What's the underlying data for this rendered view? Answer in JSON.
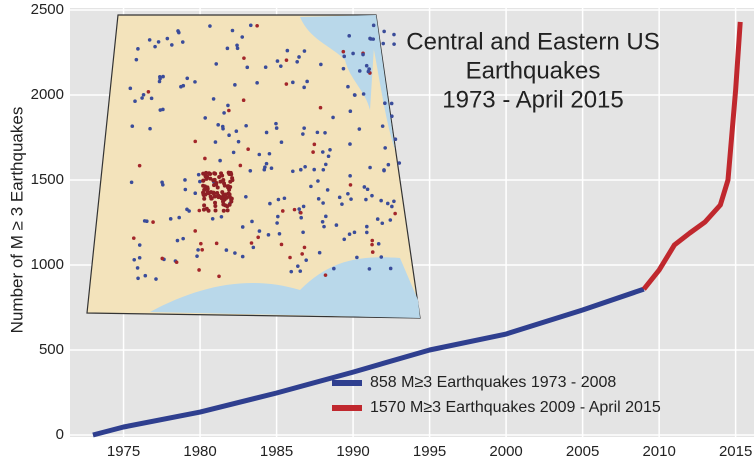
{
  "chart_data": {
    "type": "line",
    "title": [
      "Central and Eastern US",
      "Earthquakes",
      "1973 - April 2015"
    ],
    "ylabel": "Number of M ≥ 3 Earthquakes",
    "xlim": [
      1971.5,
      2016.2
    ],
    "ylim": [
      0,
      2500
    ],
    "xticks": [
      1975,
      1980,
      1985,
      1990,
      1995,
      2000,
      2005,
      2010,
      2015
    ],
    "yticks": [
      0,
      500,
      1000,
      1500,
      2000,
      2500
    ],
    "grid": true,
    "series": [
      {
        "name": "858   M≥3 Earthquakes 1973 - 2008",
        "color": "#2f3f8f",
        "x": [
          1973,
          1975,
          1980,
          1985,
          1990,
          1995,
          2000,
          2005,
          2009
        ],
        "values": [
          0,
          47,
          135,
          247,
          370,
          500,
          594,
          735,
          858
        ]
      },
      {
        "name": "1570 M≥3 Earthquakes 2009 - April 2015",
        "color": "#c0282e",
        "x": [
          2009,
          2010,
          2011,
          2012,
          2013,
          2014,
          2014.5,
          2015,
          2015.3
        ],
        "values": [
          858,
          970,
          1118,
          1188,
          1253,
          1353,
          1500,
          2030,
          2430
        ]
      }
    ]
  }
}
